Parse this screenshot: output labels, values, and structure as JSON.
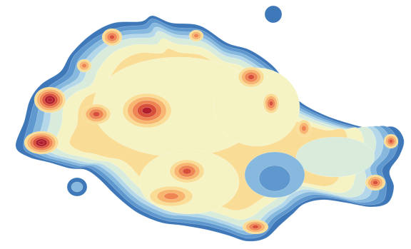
{
  "map": {
    "type": "density-contour",
    "palette": [
      "#3f78b8",
      "#5f98cf",
      "#86b9dd",
      "#b4d8ea",
      "#d9ecdc",
      "#f5f3c4",
      "#f9dd96",
      "#f7b56f",
      "#ee8552",
      "#d9503a",
      "#b11f2c"
    ],
    "background": "#ffffff",
    "hotspot_count": 14,
    "isolated_blob_count": 2,
    "labels_shown": false
  }
}
